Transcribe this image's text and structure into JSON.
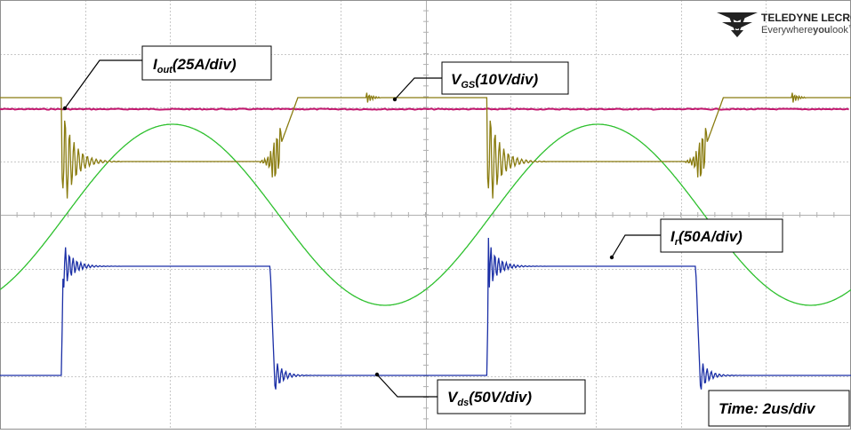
{
  "brand": {
    "name": "TELEDYNE LECROY",
    "tagline_a": "Everywhere",
    "tagline_b": "you",
    "tagline_c": "look",
    "tm": "™"
  },
  "colors": {
    "background": "#ffffff",
    "grid": "#c8c8c8",
    "vgs": "#8a7c10",
    "iout": "#c2186f",
    "ir": "#2ec02e",
    "vds": "#1b2fa6"
  },
  "chart_data": {
    "type": "line",
    "title": "",
    "timebase": {
      "main": "Time: 2us/div"
    },
    "grid": {
      "h_divisions": 10,
      "v_divisions": 8
    },
    "series": [
      {
        "name": "Iout",
        "label_main": "I",
        "label_sub": "out",
        "label_scale": "(25A/div)"
      },
      {
        "name": "VGS",
        "label_main": "V",
        "label_sub": "GS",
        "label_scale": "(10V/div)"
      },
      {
        "name": "Ir",
        "label_main": "I",
        "label_sub": "r",
        "label_scale": "(50A/div)"
      },
      {
        "name": "Vds",
        "label_main": "V",
        "label_sub": "ds",
        "label_scale": "(50V/div)"
      }
    ],
    "timing_us": {
      "period": 10.0,
      "gate_off_edges": [
        1.45,
        11.45
      ],
      "gate_on_edges": [
        6.45,
        16.45
      ]
    }
  }
}
